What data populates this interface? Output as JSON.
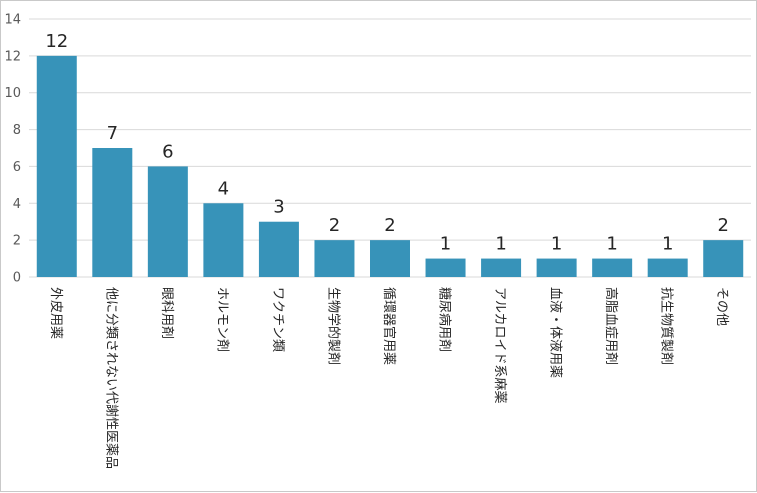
{
  "chart_data": {
    "type": "bar",
    "categories": [
      "外皮用薬",
      "他に分類されない代謝性医薬品",
      "眼科用剤",
      "ホルモン剤",
      "ワクチン類",
      "生物学的製剤",
      "循環器官用薬",
      "糖尿病用剤",
      "アルカロイド系麻薬",
      "血液・体液用薬",
      "高脂血症用剤",
      "抗生物質製剤",
      "その他"
    ],
    "values": [
      12,
      7,
      6,
      4,
      3,
      2,
      2,
      1,
      1,
      1,
      1,
      1,
      2
    ],
    "data_labels": [
      "12",
      "7",
      "6",
      "4",
      "3",
      "2",
      "2",
      "1",
      "1",
      "1",
      "1",
      "1",
      "2"
    ],
    "y_ticks": [
      "0",
      "2",
      "4",
      "6",
      "8",
      "10",
      "12",
      "14"
    ],
    "ylim": [
      0,
      14
    ],
    "grid": true,
    "legend": "none",
    "bar_color": "#3793b9",
    "grid_color": "#d9d9d9"
  }
}
